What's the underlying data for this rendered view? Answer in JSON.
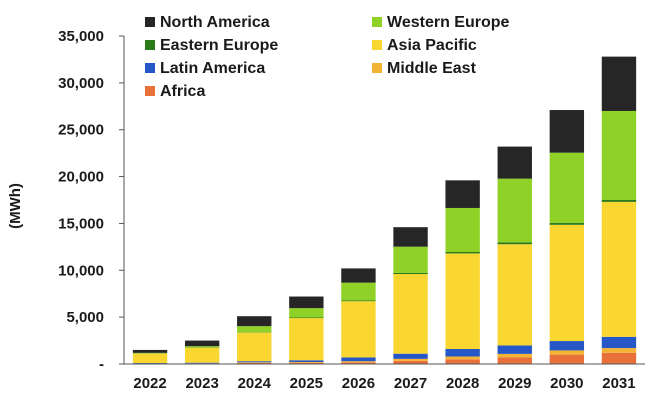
{
  "chart_data": {
    "type": "bar",
    "stacked": true,
    "title": "",
    "xlabel": "",
    "ylabel": "(MWh)",
    "categories": [
      "2022",
      "2023",
      "2024",
      "2025",
      "2026",
      "2027",
      "2028",
      "2029",
      "2030",
      "2031"
    ],
    "ylim": [
      0,
      35000
    ],
    "yticks": [
      0,
      5000,
      10000,
      15000,
      20000,
      25000,
      30000,
      35000
    ],
    "ytick_labels": [
      "-",
      "5,000",
      "10,000",
      "15,000",
      "20,000",
      "25,000",
      "30,000",
      "35,000"
    ],
    "grid": false,
    "legend_position": "top-left",
    "series": [
      {
        "name": "Africa",
        "color": "#e8703a",
        "values": [
          30,
          40,
          120,
          130,
          180,
          330,
          500,
          700,
          1000,
          1200
        ]
      },
      {
        "name": "Middle East",
        "color": "#f5b335",
        "values": [
          20,
          30,
          60,
          80,
          120,
          220,
          300,
          380,
          450,
          500
        ]
      },
      {
        "name": "Latin America",
        "color": "#2557c7",
        "values": [
          50,
          70,
          120,
          190,
          400,
          550,
          800,
          900,
          1000,
          1200
        ]
      },
      {
        "name": "Asia Pacific",
        "color": "#fad630",
        "values": [
          1000,
          1600,
          3050,
          4500,
          6000,
          8500,
          10200,
          10800,
          12400,
          14400
        ]
      },
      {
        "name": "Eastern Europe",
        "color": "#2a7a1a",
        "values": [
          10,
          20,
          40,
          60,
          80,
          120,
          150,
          200,
          200,
          200
        ]
      },
      {
        "name": "Western Europe",
        "color": "#8fd126",
        "values": [
          80,
          140,
          650,
          1000,
          1900,
          2800,
          4700,
          6800,
          7500,
          9500
        ]
      },
      {
        "name": "North America",
        "color": "#262626",
        "values": [
          310,
          600,
          1060,
          1240,
          1520,
          2080,
          2950,
          3420,
          4550,
          5800
        ]
      }
    ],
    "legend_order": [
      "North America",
      "Western Europe",
      "Eastern Europe",
      "Asia Pacific",
      "Latin America",
      "Middle East",
      "Africa"
    ]
  }
}
